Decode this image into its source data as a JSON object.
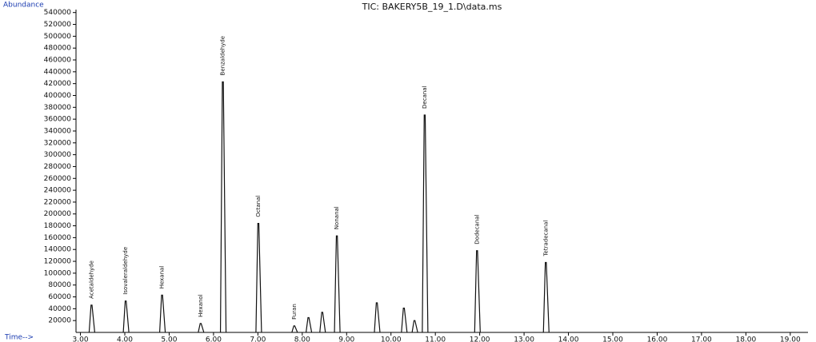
{
  "chart_data": {
    "type": "chromatogram",
    "title": "TIC: BAKERY5B_19_1.D\\data.ms",
    "y_label": "Abundance",
    "x_label": "Time-->",
    "color": "#111111",
    "x": [
      3.25,
      4.02,
      4.84,
      5.71,
      6.21,
      7.01,
      7.82,
      8.14,
      8.45,
      8.78,
      9.68,
      10.29,
      10.53,
      10.76,
      11.94,
      13.49
    ],
    "values": [
      46000,
      53000,
      63000,
      15000,
      423000,
      184000,
      11000,
      25000,
      34000,
      163000,
      50000,
      41000,
      20000,
      367000,
      138000,
      118000
    ],
    "labels": [
      "Acetaldehyde",
      "Isovaleraldehyde",
      "Hexanal",
      "Hexanol",
      "Benzaldehyde",
      "Octanal",
      "Furan",
      null,
      null,
      "Nonanal",
      null,
      null,
      null,
      "Decanal",
      "Dodecanal",
      "Tetradecanal"
    ],
    "xlim": [
      2.9,
      19.4
    ],
    "ylim": [
      0,
      545000
    ],
    "xticks": [
      {
        "value": 3,
        "label": "3.00"
      },
      {
        "value": 4,
        "label": "4.00"
      },
      {
        "value": 5,
        "label": "5.00"
      },
      {
        "value": 6,
        "label": "6.00"
      },
      {
        "value": 7,
        "label": "7.00"
      },
      {
        "value": 8,
        "label": "8.00"
      },
      {
        "value": 9,
        "label": "9.00"
      },
      {
        "value": 10,
        "label": "10.00"
      },
      {
        "value": 11,
        "label": "11.00"
      },
      {
        "value": 12,
        "label": "12.00"
      },
      {
        "value": 13,
        "label": "13.00"
      },
      {
        "value": 14,
        "label": "14.00"
      },
      {
        "value": 15,
        "label": "15.00"
      },
      {
        "value": 16,
        "label": "16.00"
      },
      {
        "value": 17,
        "label": "17.00"
      },
      {
        "value": 18,
        "label": "18.00"
      },
      {
        "value": 19,
        "label": "19.00"
      }
    ],
    "yticks": [
      20000,
      40000,
      60000,
      80000,
      100000,
      120000,
      140000,
      160000,
      180000,
      200000,
      220000,
      240000,
      260000,
      280000,
      300000,
      320000,
      340000,
      360000,
      380000,
      400000,
      420000,
      440000,
      460000,
      480000,
      500000,
      520000,
      540000
    ]
  }
}
